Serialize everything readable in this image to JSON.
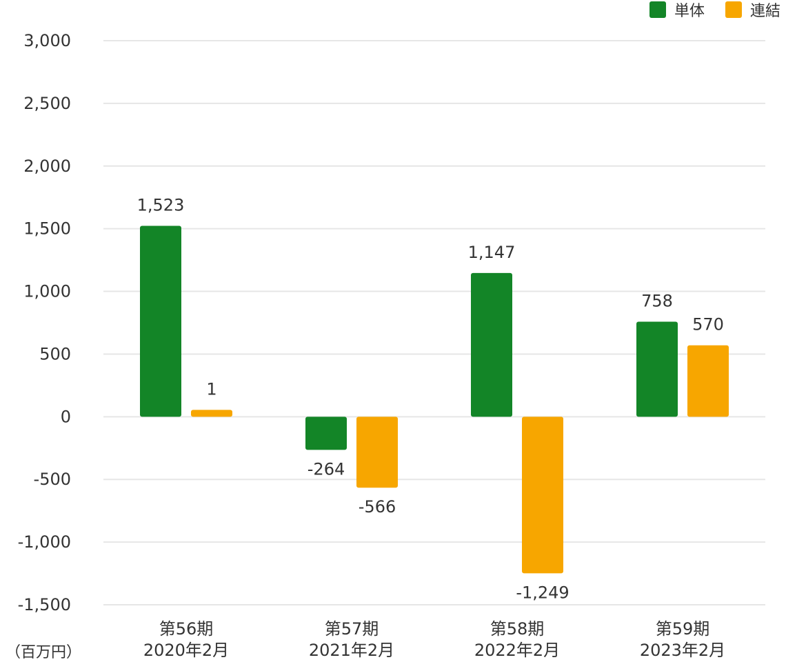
{
  "chart_data": {
    "type": "bar",
    "categories": [
      [
        "第56期",
        "2020年2月"
      ],
      [
        "第57期",
        "2021年2月"
      ],
      [
        "第58期",
        "2022年2月"
      ],
      [
        "第59期",
        "2023年2月"
      ]
    ],
    "series": [
      {
        "name": "単体",
        "color": "#138527",
        "values": [
          1523,
          -264,
          1147,
          758
        ],
        "labels": [
          "1,523",
          "-264",
          "1,147",
          "758"
        ]
      },
      {
        "name": "連結",
        "color": "#f7a600",
        "values": [
          1,
          -566,
          -1249,
          570
        ],
        "labels": [
          "1",
          "-566",
          "-1,249",
          "570"
        ]
      }
    ],
    "ylim": [
      -1500,
      3000
    ],
    "yticks": [
      3000,
      2500,
      2000,
      1500,
      1000,
      500,
      0,
      -500,
      -1000,
      -1500
    ],
    "ytick_labels": [
      "3,000",
      "2,500",
      "2,000",
      "1,500",
      "1,000",
      "500",
      "0",
      "-500",
      "-1,000",
      "-1,500"
    ],
    "unit_label": "（百万円）",
    "legend_position": "top-right",
    "grid": true,
    "colors": {
      "grid": "#e6e6e6",
      "text": "#333333"
    }
  }
}
